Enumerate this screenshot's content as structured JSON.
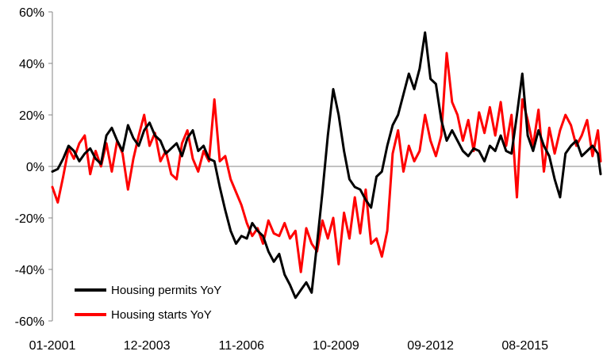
{
  "chart_data": {
    "type": "line",
    "title": "",
    "xlabel": "",
    "ylabel": "",
    "ylim": [
      -60,
      60
    ],
    "y_ticks": [
      60,
      40,
      20,
      0,
      -20,
      -40,
      -60
    ],
    "y_tick_labels": [
      "60%",
      "40%",
      "20%",
      "0%",
      "-20%",
      "-40%",
      "-60%"
    ],
    "x_tick_labels": [
      "01-2001",
      "12-2003",
      "11-2006",
      "10-2009",
      "09-2012",
      "08-2015"
    ],
    "x_tick_dates": [
      "2001-01",
      "2003-12",
      "2006-11",
      "2009-10",
      "2012-09",
      "2015-08"
    ],
    "x_range": [
      "2001-01",
      "2017-12"
    ],
    "grid": false,
    "legend_position": "bottom-left",
    "series": [
      {
        "name": "Housing permits YoY",
        "color": "#000000",
        "x": [
          "2001-01",
          "2001-03",
          "2001-05",
          "2001-07",
          "2001-09",
          "2001-11",
          "2002-01",
          "2002-03",
          "2002-05",
          "2002-07",
          "2002-09",
          "2002-11",
          "2003-01",
          "2003-03",
          "2003-05",
          "2003-07",
          "2003-09",
          "2003-11",
          "2004-01",
          "2004-03",
          "2004-05",
          "2004-07",
          "2004-09",
          "2004-11",
          "2005-01",
          "2005-03",
          "2005-05",
          "2005-07",
          "2005-09",
          "2005-11",
          "2006-01",
          "2006-03",
          "2006-05",
          "2006-07",
          "2006-09",
          "2006-11",
          "2007-01",
          "2007-03",
          "2007-05",
          "2007-07",
          "2007-09",
          "2007-11",
          "2008-01",
          "2008-03",
          "2008-05",
          "2008-07",
          "2008-09",
          "2008-11",
          "2009-01",
          "2009-03",
          "2009-05",
          "2009-07",
          "2009-09",
          "2009-11",
          "2010-01",
          "2010-03",
          "2010-05",
          "2010-07",
          "2010-09",
          "2010-11",
          "2011-01",
          "2011-03",
          "2011-05",
          "2011-07",
          "2011-09",
          "2011-11",
          "2012-01",
          "2012-03",
          "2012-05",
          "2012-07",
          "2012-09",
          "2012-11",
          "2013-01",
          "2013-03",
          "2013-05",
          "2013-07",
          "2013-09",
          "2013-11",
          "2014-01",
          "2014-03",
          "2014-05",
          "2014-07",
          "2014-09",
          "2014-11",
          "2015-01",
          "2015-03",
          "2015-05",
          "2015-07",
          "2015-09",
          "2015-11",
          "2016-01",
          "2016-03",
          "2016-05",
          "2016-07",
          "2016-09",
          "2016-11",
          "2017-01",
          "2017-03",
          "2017-05",
          "2017-07",
          "2017-09",
          "2017-11",
          "2017-12"
        ],
        "values": [
          -2,
          -1,
          3,
          8,
          6,
          2,
          5,
          7,
          3,
          1,
          12,
          15,
          10,
          6,
          16,
          11,
          8,
          14,
          17,
          12,
          10,
          5,
          7,
          9,
          4,
          11,
          14,
          6,
          8,
          3,
          2,
          -8,
          -17,
          -25,
          -30,
          -27,
          -28,
          -22,
          -25,
          -27,
          -33,
          -37,
          -34,
          -42,
          -46,
          -51,
          -48,
          -45,
          -49,
          -30,
          -10,
          12,
          30,
          20,
          6,
          -5,
          -8,
          -9,
          -13,
          -16,
          -4,
          -2,
          8,
          16,
          20,
          28,
          36,
          30,
          38,
          52,
          34,
          32,
          18,
          10,
          14,
          10,
          6,
          4,
          7,
          6,
          2,
          8,
          6,
          12,
          6,
          5,
          20,
          36,
          12,
          6,
          14,
          8,
          4,
          -5,
          -12,
          5,
          8,
          10,
          4,
          6,
          8,
          5,
          -3
        ]
      },
      {
        "name": "Housing starts YoY",
        "color": "#ff0000",
        "x": [
          "2001-01",
          "2001-03",
          "2001-05",
          "2001-07",
          "2001-09",
          "2001-11",
          "2002-01",
          "2002-03",
          "2002-05",
          "2002-07",
          "2002-09",
          "2002-11",
          "2003-01",
          "2003-03",
          "2003-05",
          "2003-07",
          "2003-09",
          "2003-11",
          "2004-01",
          "2004-03",
          "2004-05",
          "2004-07",
          "2004-09",
          "2004-11",
          "2005-01",
          "2005-03",
          "2005-05",
          "2005-07",
          "2005-09",
          "2005-11",
          "2006-01",
          "2006-03",
          "2006-05",
          "2006-07",
          "2006-09",
          "2006-11",
          "2007-01",
          "2007-03",
          "2007-05",
          "2007-07",
          "2007-09",
          "2007-11",
          "2008-01",
          "2008-03",
          "2008-05",
          "2008-07",
          "2008-09",
          "2008-11",
          "2009-01",
          "2009-03",
          "2009-05",
          "2009-07",
          "2009-09",
          "2009-11",
          "2010-01",
          "2010-03",
          "2010-05",
          "2010-07",
          "2010-09",
          "2010-11",
          "2011-01",
          "2011-03",
          "2011-05",
          "2011-07",
          "2011-09",
          "2011-11",
          "2012-01",
          "2012-03",
          "2012-05",
          "2012-07",
          "2012-09",
          "2012-11",
          "2013-01",
          "2013-03",
          "2013-05",
          "2013-07",
          "2013-09",
          "2013-11",
          "2014-01",
          "2014-03",
          "2014-05",
          "2014-07",
          "2014-09",
          "2014-11",
          "2015-01",
          "2015-03",
          "2015-05",
          "2015-07",
          "2015-09",
          "2015-11",
          "2016-01",
          "2016-03",
          "2016-05",
          "2016-07",
          "2016-09",
          "2016-11",
          "2017-01",
          "2017-03",
          "2017-05",
          "2017-07",
          "2017-09",
          "2017-11",
          "2017-12"
        ],
        "values": [
          -8,
          -14,
          -4,
          7,
          3,
          9,
          12,
          -3,
          6,
          0,
          9,
          -2,
          10,
          5,
          -9,
          3,
          12,
          20,
          8,
          13,
          2,
          6,
          -3,
          -5,
          9,
          14,
          3,
          -2,
          6,
          2,
          26,
          2,
          4,
          -5,
          -10,
          -15,
          -22,
          -27,
          -24,
          -30,
          -21,
          -26,
          -27,
          -22,
          -28,
          -25,
          -41,
          -24,
          -30,
          -33,
          -21,
          -28,
          -20,
          -38,
          -18,
          -28,
          -12,
          -26,
          -9,
          -30,
          -28,
          -35,
          -25,
          5,
          14,
          -2,
          8,
          2,
          6,
          20,
          10,
          4,
          12,
          44,
          25,
          20,
          10,
          18,
          6,
          21,
          13,
          23,
          12,
          25,
          8,
          20,
          -12,
          26,
          18,
          8,
          22,
          -2,
          15,
          5,
          14,
          20,
          16,
          8,
          12,
          18,
          4,
          14,
          2
        ]
      }
    ]
  }
}
